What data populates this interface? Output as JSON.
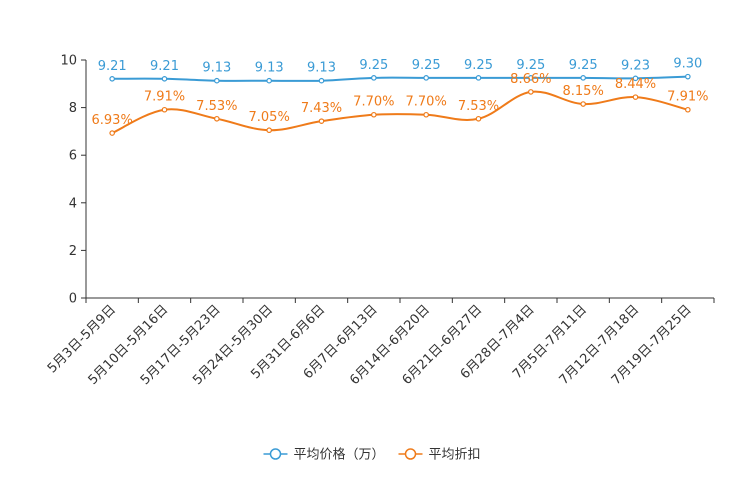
{
  "chart_data": {
    "type": "line",
    "title": "",
    "xlabel": "",
    "ylabel": "",
    "ylim": [
      0,
      10
    ],
    "yticks": [
      0,
      2,
      4,
      6,
      8,
      10
    ],
    "categories": [
      "5月3日-5月9日",
      "5月10日-5月16日",
      "5月17日-5月23日",
      "5月24日-5月30日",
      "5月31日-6月6日",
      "6月7日-6月13日",
      "6月14日-6月20日",
      "6月21日-6月27日",
      "6月28日-7月4日",
      "7月5日-7月11日",
      "7月12日-7月18日",
      "7月19日-7月25日"
    ],
    "series": [
      {
        "name": "平均价格（万）",
        "color": "#3a9bd5",
        "values": [
          9.21,
          9.21,
          9.13,
          9.13,
          9.13,
          9.25,
          9.25,
          9.25,
          9.25,
          9.25,
          9.23,
          9.3
        ],
        "labels": [
          "9.21",
          "9.21",
          "9.13",
          "9.13",
          "9.13",
          "9.25",
          "9.25",
          "9.25",
          "9.25",
          "9.25",
          "9.23",
          "9.30"
        ]
      },
      {
        "name": "平均折扣",
        "color": "#ef7b1a",
        "values": [
          6.93,
          7.91,
          7.53,
          7.05,
          7.43,
          7.7,
          7.7,
          7.53,
          8.66,
          8.15,
          8.44,
          7.91
        ],
        "labels": [
          "6.93%",
          "7.91%",
          "7.53%",
          "7.05%",
          "7.43%",
          "7.70%",
          "7.70%",
          "7.53%",
          "8.66%",
          "8.15%",
          "8.44%",
          "7.91%"
        ]
      }
    ],
    "legend_position": "bottom-center"
  }
}
